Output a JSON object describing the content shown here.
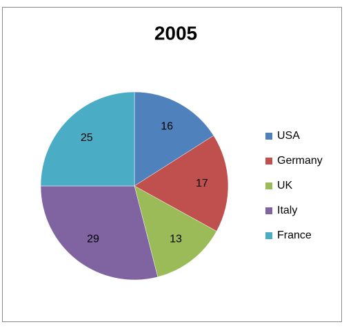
{
  "chart_data": {
    "type": "pie",
    "title": "2005",
    "categories": [
      "USA",
      "Germany",
      "UK",
      "Italy",
      "France"
    ],
    "values": [
      16,
      17,
      13,
      29,
      25
    ],
    "colors": [
      "#4f81bd",
      "#c0504d",
      "#9bbb59",
      "#8064a2",
      "#4bacc6"
    ],
    "legend": "right"
  }
}
